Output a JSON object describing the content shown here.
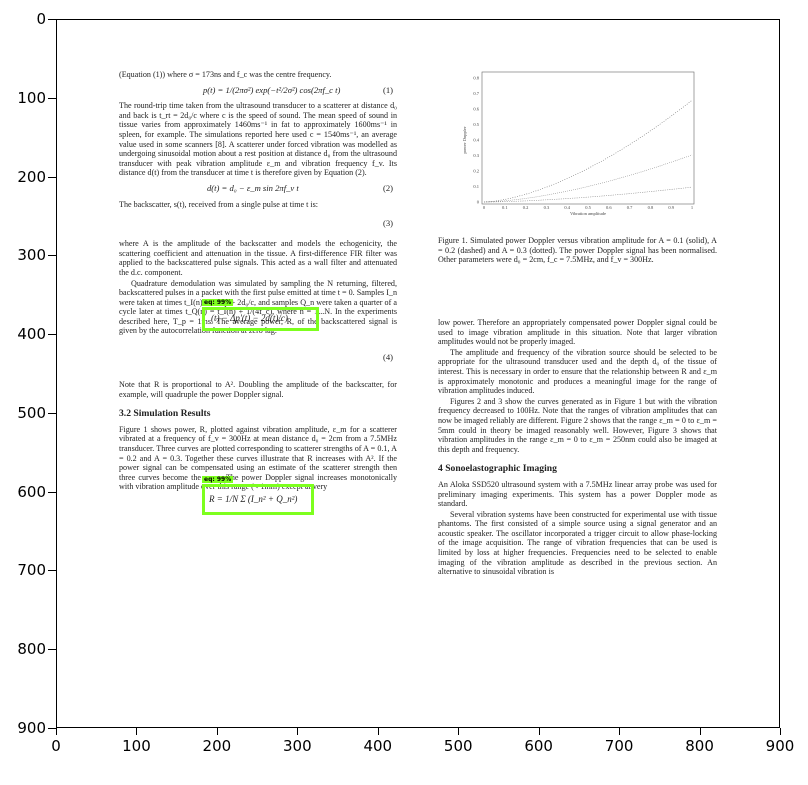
{
  "plot_axes": {
    "x_ticks": [
      "0",
      "100",
      "200",
      "300",
      "400",
      "500",
      "600",
      "700",
      "800",
      "900"
    ],
    "y_ticks": [
      "0",
      "100",
      "200",
      "300",
      "400",
      "500",
      "600",
      "700",
      "800",
      "900"
    ]
  },
  "detections": [
    {
      "label": "eq: 99%",
      "content": "(t) − Δp'(t) − 2d(t)/c)"
    },
    {
      "label": "eq: 99%",
      "content": "R = 1/N Σ (I_n² + Q_n²)"
    }
  ],
  "paper": {
    "left_column": {
      "p1": "(Equation (1)) where σ = 173ns and f_c was the centre frequency.",
      "eq1": "p(t) = 1/(2πσ²) exp(−t²/2σ²) cos(2πf_c t)",
      "eq1_num": "(1)",
      "p2": "The round-trip time taken from the ultrasound transducer to a scatterer at distance d₀ and back is t_rt = 2d₀/c where c is the speed of sound. The mean speed of sound in tissue varies from approximately 1460ms⁻¹ in fat to approximately 1600ms⁻¹ in spleen, for example. The simulations reported here used c = 1540ms⁻¹, an average value used in some scanners [8]. A scatterer under forced vibration was modelled as undergoing sinusoidal motion about a rest position at distance d₀ from the ultrasound transducer with peak vibration amplitude ε_m and vibration frequency f_v. Its distance d(t) from the transducer at time t is therefore given by Equation (2).",
      "eq2": "d(t) = d₀ − ε_m sin 2πf_v t",
      "eq2_num": "(2)",
      "p3": "The backscatter, s(t), received from a single pulse at time t is:",
      "eq3_num": "(3)",
      "p4": "where A is the amplitude of the backscatter and models the echogenicity, the scattering coefficient and attenuation in the tissue. A first-difference FIR filter was applied to the backscattered pulse signals. This acted as a wall filter and attenuated the d.c. component.",
      "p5": "Quadrature demodulation was simulated by sampling the N returning, filtered, backscattered pulses in a packet with the first pulse emitted at time t = 0. Samples I_n were taken at times t_I(n) = nT_p + 2d₀/c, and samples Q_n were taken a quarter of a cycle later at times t_Q(n) = t_I(n) + 1/(4f_c), where n = 1...N. In the experiments described here, T_p = 1ms. The average power, R, of the backscattered signal is given by the autocorrelation function at zero lag:",
      "eq4_num": "(4)",
      "p6": "Note that R is proportional to A². Doubling the amplitude of the backscatter, for example, will quadruple the power Doppler signal.",
      "section": "3.2    Simulation Results",
      "p7": "Figure 1 shows power, R, plotted against vibration amplitude, ε_m for a scatterer vibrated at a frequency of f_v = 300Hz at mean distance d₀ = 2cm from a 7.5MHz transducer. Three curves are plotted corresponding to scatterer strengths of A = 0.1, A = 0.2 and A = 0.3. Together these curves illustrate that R increases with A². If the power signal can be compensated using an estimate of the scatterer strength then three curves become the same. The power Doppler signal increases monotonically with vibration amplitude over this range (< 1mm) except at very"
    },
    "figure": {
      "ylabel": "power Doppler",
      "xlabel": "Vibration amplitude",
      "y_ticks": [
        "0.8",
        "0.7",
        "0.6",
        "0.5",
        "0.4",
        "0.3",
        "0.2",
        "0.1",
        "0"
      ],
      "x_ticks": [
        "0",
        "0.1",
        "0.2",
        "0.3",
        "0.4",
        "0.5",
        "0.6",
        "0.7",
        "0.8",
        "0.9",
        "1"
      ]
    },
    "caption": "Figure 1. Simulated power Doppler versus vibration amplitude for A = 0.1 (solid), A = 0.2 (dashed) and A = 0.3 (dotted). The power Doppler signal has been normalised. Other parameters were d₀ = 2cm, f_c = 7.5MHz, and f_v = 300Hz.",
    "right_column": {
      "p1": "low power. Therefore an appropriately compensated power Doppler signal could be used to image vibration amplitude in this situation. Note that larger vibration amplitudes would not be properly imaged.",
      "p2": "The amplitude and frequency of the vibration source should be selected to be appropriate for the ultrasound transducer used and the depth d₀ of the tissue of interest. This is necessary in order to ensure that the relationship between R and ε_m is approximately monotonic and produces a meaningful image for the range of vibration amplitudes induced.",
      "p3": "Figures 2 and 3 show the curves generated as in Figure 1 but with the vibration frequency decreased to 100Hz. Note that the ranges of vibration amplitudes that can now be imaged reliably are different. Figure 2 shows that the range ε_m = 0 to ε_m = 5mm could in theory be imaged reasonably well. However, Figure 3 shows that vibration amplitudes in the range ε_m = 0 to ε_m = 250nm could also be imaged at this depth and frequency.",
      "section": "4    Sonoelastographic Imaging",
      "p4": "An Aloka SSD520 ultrasound system with a 7.5MHz linear array probe was used for preliminary imaging experiments. This system has a power Doppler mode as standard.",
      "p5": "Several vibration systems have been constructed for experimental use with tissue phantoms. The first consisted of a simple source using a signal generator and an acoustic speaker. The oscillator incorporated a trigger circuit to allow phase-locking of the image acquisition. The range of vibration frequencies that can be used is limited by loss at higher frequencies. Frequencies need to be selected to enable imaging of the vibration amplitude as described in the previous section. An alternative to sinusoidal vibration is"
    }
  }
}
